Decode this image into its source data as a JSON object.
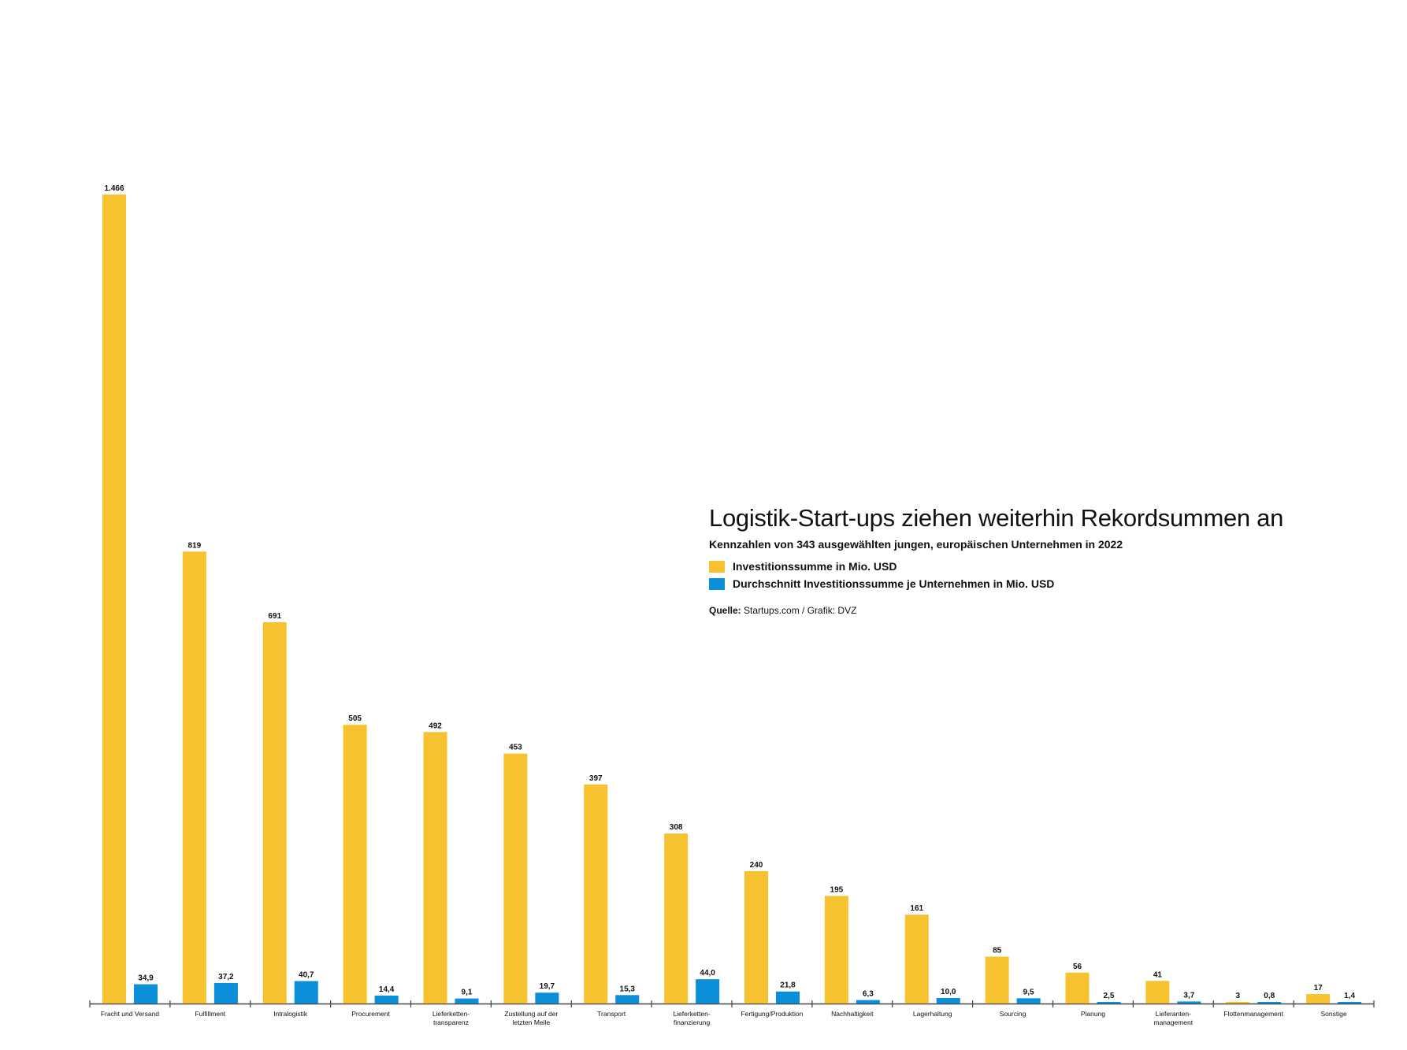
{
  "title": "Logistik-Start-ups ziehen weiterhin Rekordsummen an",
  "subtitle": "Kennzahlen von 343 ausgewählten jungen, europäischen Unternehmen in 2022",
  "source_label": "Quelle:",
  "source_text": "Startups.com / Grafik: DVZ",
  "colors": {
    "series1": "#f7c230",
    "series2": "#0a8fd8",
    "axis": "#444444"
  },
  "chart_data": {
    "type": "bar",
    "title": "Logistik-Start-ups ziehen weiterhin Rekordsummen an",
    "xlabel": "",
    "ylabel": "",
    "ylim": [
      0,
      1466
    ],
    "grid": false,
    "legend_position": "right",
    "categories": [
      [
        "Fracht und Versand"
      ],
      [
        "Fulfillment"
      ],
      [
        "Intralogistik"
      ],
      [
        "Procurement"
      ],
      [
        "Lieferketten-",
        "transparenz"
      ],
      [
        "Zustellung auf der",
        "letzten Meile"
      ],
      [
        "Transport"
      ],
      [
        "Lieferketten-",
        "finanzierung"
      ],
      [
        "Fertigung/Produktion"
      ],
      [
        "Nachhaltigkeit"
      ],
      [
        "Lagerhaltung"
      ],
      [
        "Sourcing"
      ],
      [
        "Planung"
      ],
      [
        "Lieferanten-",
        "management"
      ],
      [
        "Flottenmanagement"
      ],
      [
        "Sonstige"
      ]
    ],
    "series": [
      {
        "name": "Investitionssumme in Mio. USD",
        "values": [
          1466,
          819,
          691,
          505,
          492,
          453,
          397,
          308,
          240,
          195,
          161,
          85,
          56,
          41,
          3,
          17
        ],
        "labels": [
          "1.466",
          "819",
          "691",
          "505",
          "492",
          "453",
          "397",
          "308",
          "240",
          "195",
          "161",
          "85",
          "56",
          "41",
          "3",
          "17"
        ]
      },
      {
        "name": "Durchschnitt Investitionssumme je Unternehmen in Mio. USD",
        "values": [
          34.9,
          37.2,
          40.7,
          14.4,
          9.1,
          19.7,
          15.3,
          44.0,
          21.8,
          6.3,
          10.0,
          9.5,
          2.5,
          3.7,
          0.8,
          1.4
        ],
        "labels": [
          "34,9",
          "37,2",
          "40,7",
          "14,4",
          "9,1",
          "19,7",
          "15,3",
          "44,0",
          "21,8",
          "6,3",
          "10,0",
          "9,5",
          "2,5",
          "3,7",
          "0,8",
          "1,4"
        ]
      }
    ]
  }
}
